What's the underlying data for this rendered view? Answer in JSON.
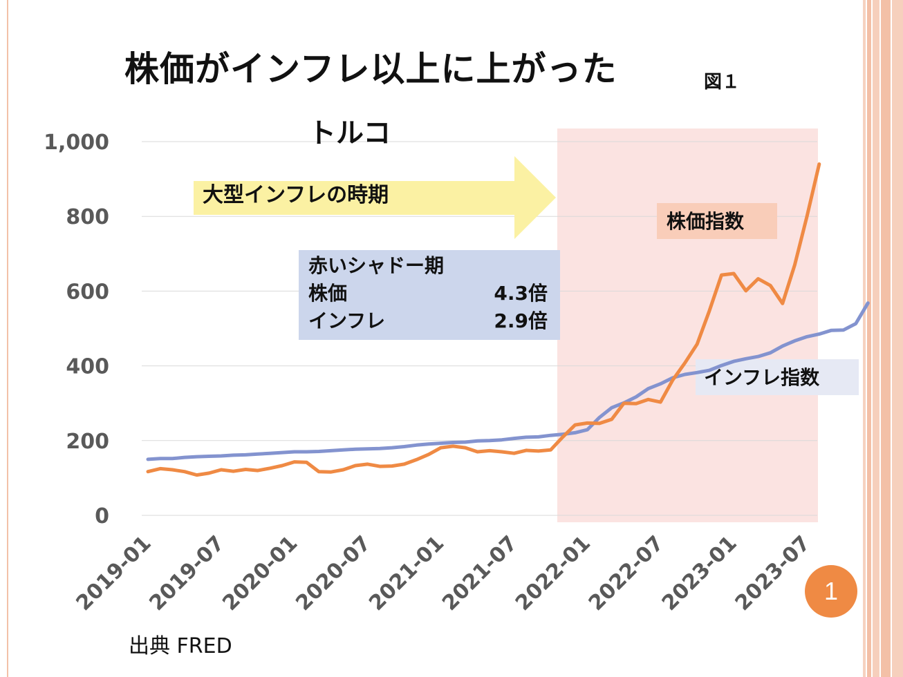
{
  "slide": {
    "title": "株価がインフレ以上に上がった",
    "figure_label": "図１",
    "country": "トルコ",
    "source": "出典 FRED",
    "page_number": "1"
  },
  "annotations": {
    "arrow_label": "大型インフレの時期",
    "shadow_box": {
      "heading": "赤いシャドー期",
      "row1_label": "株価",
      "row1_value": "4.3倍",
      "row2_label": "インフレ",
      "row2_value": "2.9倍"
    },
    "stock_label": "株価指数",
    "inflation_label": "インフレ指数"
  },
  "colors": {
    "stock": "#ef8a44",
    "inflation": "#8393cf",
    "shadow": "#fbe3e1",
    "arrow": "#fbf1a3",
    "info_box": "#ccd6ec",
    "stock_label_bg": "#f9cdb9",
    "inflation_label_bg": "#e6e9f4",
    "page_badge": "#ef8a44"
  },
  "chart_data": {
    "type": "line",
    "x_ticks": [
      "2019-01",
      "2019-07",
      "2020-01",
      "2020-07",
      "2021-01",
      "2021-07",
      "2022-01",
      "2022-07",
      "2023-01",
      "2023-07"
    ],
    "y_ticks": [
      "0",
      "200",
      "400",
      "600",
      "800",
      "1,000"
    ],
    "ylim": [
      0,
      1000
    ],
    "grid": true,
    "shaded_period": [
      "2022-01",
      "2023-09"
    ],
    "series": [
      {
        "name": "株価指数",
        "values": [
          117,
          125,
          122,
          117,
          108,
          113,
          122,
          118,
          123,
          120,
          126,
          133,
          143,
          142,
          117,
          116,
          122,
          133,
          137,
          131,
          132,
          137,
          149,
          163,
          181,
          185,
          181,
          170,
          173,
          170,
          166,
          174,
          172,
          175,
          210,
          242,
          247,
          246,
          257,
          300,
          299,
          310,
          303,
          362,
          408,
          458,
          547,
          643,
          647,
          601,
          633,
          615,
          567,
          670,
          800,
          940
        ]
      },
      {
        "name": "インフレ指数",
        "values": [
          150,
          152,
          152,
          155,
          157,
          158,
          159,
          161,
          162,
          164,
          166,
          168,
          170,
          170,
          171,
          173,
          175,
          177,
          178,
          179,
          181,
          184,
          188,
          191,
          193,
          195,
          196,
          199,
          200,
          202,
          206,
          209,
          210,
          214,
          217,
          221,
          229,
          262,
          288,
          301,
          317,
          339,
          352,
          368,
          377,
          382,
          388,
          401,
          412,
          419,
          425,
          435,
          453,
          467,
          478,
          485,
          495,
          496,
          513,
          568
        ]
      }
    ]
  }
}
